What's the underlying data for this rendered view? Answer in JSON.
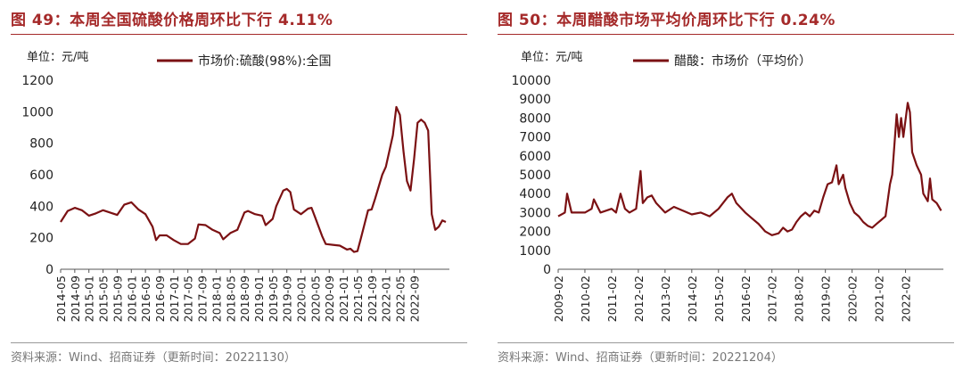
{
  "left": {
    "title": "图 49：本周全国硫酸价格周环比下行 4.11%",
    "source": "资料来源：Wind、招商证券（更新时间：20221130）",
    "unit_label": "单位：元/吨",
    "colors": {
      "accent": "#a52a2a",
      "line": "#7b1113"
    },
    "chart_data": {
      "type": "line",
      "title": "图 49：本周全国硫酸价格周环比下行 4.11%",
      "xlabel": "",
      "ylabel": "单位：元/吨",
      "ylim": [
        0,
        1200
      ],
      "yticks": [
        "0",
        "200",
        "400",
        "600",
        "800",
        "1000",
        "1200"
      ],
      "xticks": [
        "2014-05",
        "2014-09",
        "2015-01",
        "2015-05",
        "2015-09",
        "2016-01",
        "2016-05",
        "2016-09",
        "2017-01",
        "2017-05",
        "2017-09",
        "2018-01",
        "2018-05",
        "2018-09",
        "2019-01",
        "2019-05",
        "2019-09",
        "2020-01",
        "2020-05",
        "2020-09",
        "2021-01",
        "2021-05",
        "2021-09",
        "2022-01",
        "2022-05",
        "2022-09"
      ],
      "legend_position": "top",
      "grid": false,
      "series": [
        {
          "name": "市场价:硫酸(98%):全国",
          "points": [
            [
              "2014-05",
              300
            ],
            [
              "2014-07",
              370
            ],
            [
              "2014-09",
              390
            ],
            [
              "2014-11",
              375
            ],
            [
              "2015-01",
              340
            ],
            [
              "2015-03",
              355
            ],
            [
              "2015-05",
              375
            ],
            [
              "2015-07",
              360
            ],
            [
              "2015-09",
              345
            ],
            [
              "2015-11",
              410
            ],
            [
              "2016-01",
              425
            ],
            [
              "2016-03",
              380
            ],
            [
              "2016-05",
              350
            ],
            [
              "2016-07",
              270
            ],
            [
              "2016-08",
              185
            ],
            [
              "2016-09",
              215
            ],
            [
              "2016-11",
              215
            ],
            [
              "2017-01",
              185
            ],
            [
              "2017-03",
              160
            ],
            [
              "2017-05",
              160
            ],
            [
              "2017-07",
              195
            ],
            [
              "2017-08",
              285
            ],
            [
              "2017-10",
              280
            ],
            [
              "2017-12",
              250
            ],
            [
              "2018-02",
              230
            ],
            [
              "2018-03",
              190
            ],
            [
              "2018-05",
              230
            ],
            [
              "2018-07",
              250
            ],
            [
              "2018-09",
              360
            ],
            [
              "2018-10",
              370
            ],
            [
              "2018-12",
              350
            ],
            [
              "2019-02",
              340
            ],
            [
              "2019-03",
              280
            ],
            [
              "2019-05",
              320
            ],
            [
              "2019-06",
              400
            ],
            [
              "2019-08",
              500
            ],
            [
              "2019-09",
              510
            ],
            [
              "2019-10",
              490
            ],
            [
              "2019-11",
              380
            ],
            [
              "2020-01",
              350
            ],
            [
              "2020-03",
              385
            ],
            [
              "2020-04",
              390
            ],
            [
              "2020-05",
              330
            ],
            [
              "2020-07",
              210
            ],
            [
              "2020-08",
              160
            ],
            [
              "2020-10",
              155
            ],
            [
              "2020-12",
              150
            ],
            [
              "2021-02",
              125
            ],
            [
              "2021-03",
              130
            ],
            [
              "2021-04",
              110
            ],
            [
              "2021-05",
              115
            ],
            [
              "2021-06",
              200
            ],
            [
              "2021-08",
              375
            ],
            [
              "2021-09",
              380
            ],
            [
              "2021-10",
              450
            ],
            [
              "2021-12",
              600
            ],
            [
              "2022-01",
              650
            ],
            [
              "2022-03",
              850
            ],
            [
              "2022-04",
              1030
            ],
            [
              "2022-05",
              980
            ],
            [
              "2022-06",
              750
            ],
            [
              "2022-07",
              560
            ],
            [
              "2022-08",
              500
            ],
            [
              "2022-09",
              700
            ],
            [
              "2022-10",
              930
            ],
            [
              "2022-11",
              950
            ],
            [
              "2022-12",
              930
            ],
            [
              "2023-01",
              880
            ],
            [
              "2023-02",
              350
            ],
            [
              "2023-03",
              250
            ],
            [
              "2023-04",
              270
            ],
            [
              "2023-05",
              310
            ],
            [
              "2023-06",
              300
            ]
          ]
        }
      ]
    }
  },
  "right": {
    "title": "图 50：本周醋酸市场平均价周环比下行 0.24%",
    "source": "资料来源：Wind、招商证券（更新时间：20221204）",
    "unit_label": "单位：元/吨",
    "colors": {
      "accent": "#a52a2a",
      "line": "#7b1113"
    },
    "chart_data": {
      "type": "line",
      "title": "图 50：本周醋酸市场平均价周环比下行 0.24%",
      "xlabel": "",
      "ylabel": "单位：元/吨",
      "ylim": [
        0,
        10000
      ],
      "yticks": [
        "0",
        "1000",
        "2000",
        "3000",
        "4000",
        "5000",
        "6000",
        "7000",
        "8000",
        "9000",
        "10000"
      ],
      "xticks": [
        "2009-02",
        "2010-02",
        "2011-02",
        "2012-02",
        "2013-02",
        "2014-02",
        "2015-02",
        "2016-02",
        "2017-02",
        "2018-02",
        "2019-02",
        "2020-02",
        "2021-02",
        "2022-02"
      ],
      "legend_position": "top",
      "grid": false,
      "series": [
        {
          "name": "醋酸：市场价（平均价）",
          "points": [
            [
              "2009-02",
              2800
            ],
            [
              "2009-05",
              3000
            ],
            [
              "2009-06",
              4000
            ],
            [
              "2009-08",
              3000
            ],
            [
              "2010-02",
              3000
            ],
            [
              "2010-05",
              3200
            ],
            [
              "2010-06",
              3700
            ],
            [
              "2010-09",
              3000
            ],
            [
              "2011-02",
              3200
            ],
            [
              "2011-04",
              3000
            ],
            [
              "2011-06",
              4000
            ],
            [
              "2011-08",
              3200
            ],
            [
              "2011-10",
              3000
            ],
            [
              "2012-01",
              3200
            ],
            [
              "2012-03",
              5200
            ],
            [
              "2012-04",
              3500
            ],
            [
              "2012-06",
              3800
            ],
            [
              "2012-08",
              3900
            ],
            [
              "2012-10",
              3500
            ],
            [
              "2013-02",
              3000
            ],
            [
              "2013-06",
              3300
            ],
            [
              "2013-10",
              3100
            ],
            [
              "2014-02",
              2900
            ],
            [
              "2014-06",
              3000
            ],
            [
              "2014-10",
              2800
            ],
            [
              "2015-02",
              3200
            ],
            [
              "2015-04",
              3500
            ],
            [
              "2015-06",
              3800
            ],
            [
              "2015-08",
              4000
            ],
            [
              "2015-10",
              3500
            ],
            [
              "2016-02",
              3000
            ],
            [
              "2016-05",
              2700
            ],
            [
              "2016-08",
              2400
            ],
            [
              "2016-11",
              2000
            ],
            [
              "2017-02",
              1800
            ],
            [
              "2017-05",
              1900
            ],
            [
              "2017-07",
              2200
            ],
            [
              "2017-09",
              2000
            ],
            [
              "2017-11",
              2100
            ],
            [
              "2018-01",
              2500
            ],
            [
              "2018-03",
              2800
            ],
            [
              "2018-05",
              3000
            ],
            [
              "2018-07",
              2800
            ],
            [
              "2018-09",
              3100
            ],
            [
              "2018-11",
              3000
            ],
            [
              "2019-01",
              3800
            ],
            [
              "2019-03",
              4500
            ],
            [
              "2019-05",
              4600
            ],
            [
              "2019-07",
              5500
            ],
            [
              "2019-08",
              4500
            ],
            [
              "2019-10",
              5000
            ],
            [
              "2019-11",
              4300
            ],
            [
              "2020-01",
              3500
            ],
            [
              "2020-03",
              3000
            ],
            [
              "2020-05",
              2800
            ],
            [
              "2020-07",
              2500
            ],
            [
              "2020-09",
              2300
            ],
            [
              "2020-11",
              2200
            ],
            [
              "2021-01",
              2400
            ],
            [
              "2021-03",
              2600
            ],
            [
              "2021-05",
              2800
            ],
            [
              "2021-07",
              4500
            ],
            [
              "2021-08",
              5000
            ],
            [
              "2021-10",
              8200
            ],
            [
              "2021-11",
              7000
            ],
            [
              "2021-12",
              8000
            ],
            [
              "2022-01",
              7000
            ],
            [
              "2022-03",
              8800
            ],
            [
              "2022-04",
              8300
            ],
            [
              "2022-05",
              6200
            ],
            [
              "2022-07",
              5500
            ],
            [
              "2022-09",
              5000
            ],
            [
              "2022-10",
              4000
            ],
            [
              "2022-12",
              3600
            ],
            [
              "2023-01",
              4800
            ],
            [
              "2023-02",
              3700
            ],
            [
              "2023-04",
              3500
            ],
            [
              "2023-05",
              3300
            ],
            [
              "2023-06",
              3100
            ]
          ]
        }
      ]
    }
  }
}
